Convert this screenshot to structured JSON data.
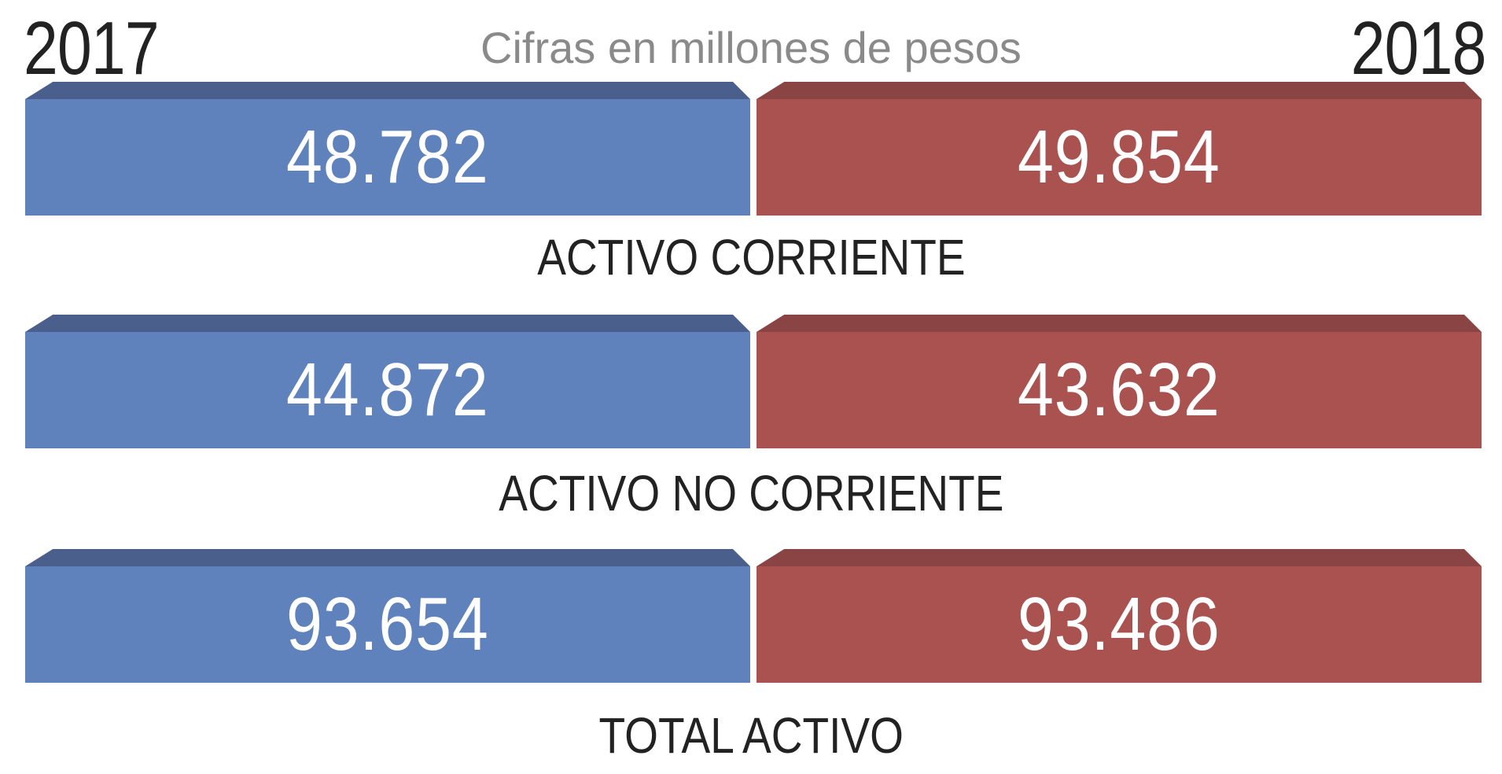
{
  "header": {
    "year_left": "2017",
    "year_right": "2018",
    "subtitle": "Cifras en millones de pesos"
  },
  "colors": {
    "left_face": "#6082bc",
    "left_top": "#4a5f8b",
    "right_face": "#a95250",
    "right_top": "#8b4444"
  },
  "chart_data": {
    "type": "table",
    "title": "",
    "subtitle": "Cifras en millones de pesos",
    "columns": [
      "2017",
      "2018"
    ],
    "rows": [
      {
        "label": "ACTIVO CORRIENTE",
        "v2017": 48782,
        "v2018": 49854,
        "text2017": "48.782",
        "text2018": "49.854"
      },
      {
        "label": "ACTIVO NO CORRIENTE",
        "v2017": 44872,
        "v2018": 43632,
        "text2017": "44.872",
        "text2018": "43.632"
      },
      {
        "label": "TOTAL ACTIVO",
        "v2017": 93654,
        "v2018": 93486,
        "text2017": "93.654",
        "text2018": "93.486"
      }
    ]
  }
}
